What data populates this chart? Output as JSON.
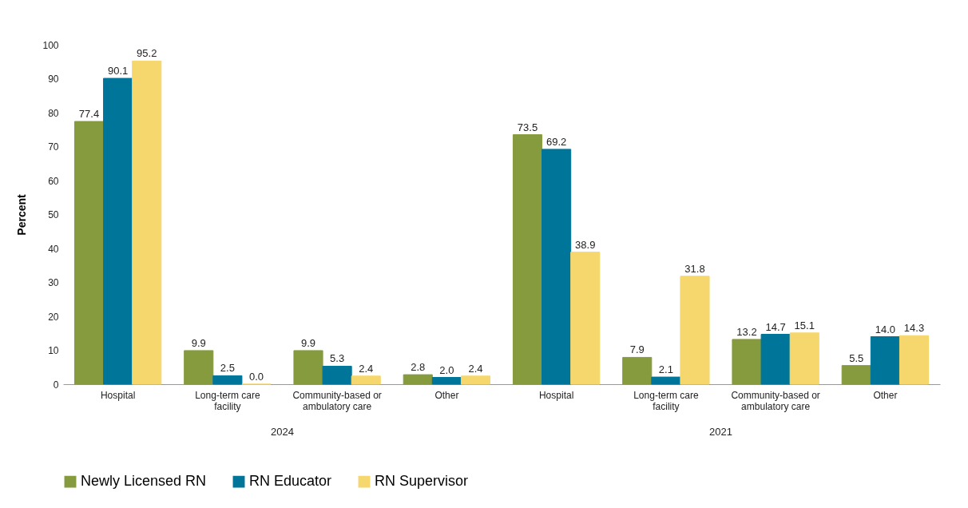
{
  "chart_data": {
    "type": "bar",
    "ylabel": "Percent",
    "categories": [
      "Hospital",
      "Long-term care facility",
      "Community-based or ambulatory care",
      "Other",
      "Hospital",
      "Long-term care facility",
      "Community-based or ambulatory care",
      "Other"
    ],
    "series": [
      {
        "name": "Newly Licensed RN",
        "color": "#869a3e",
        "values": [
          77.4,
          9.9,
          9.9,
          2.8,
          73.5,
          7.9,
          13.2,
          5.5
        ],
        "value_labels": [
          "77.4",
          "9.9",
          "9.9",
          "2.8",
          "73.5",
          "7.9",
          "13.2",
          "5.5"
        ]
      },
      {
        "name": "RN Educator",
        "color": "#00759a",
        "values": [
          90.1,
          2.5,
          5.3,
          2.0,
          69.2,
          2.1,
          14.7,
          14.0
        ],
        "value_labels": [
          "90.1",
          "2.5",
          "5.3",
          "2.0",
          "69.2",
          "2.1",
          "14.7",
          "14.0"
        ]
      },
      {
        "name": "RN Supervisor",
        "color": "#f5d76e",
        "values": [
          95.2,
          0.0,
          2.4,
          2.4,
          38.9,
          31.8,
          15.1,
          14.3
        ],
        "value_labels": [
          "95.2",
          "0.0",
          "2.4",
          "2.4",
          "38.9",
          "31.8",
          "15.1",
          "14.3"
        ]
      }
    ],
    "annotations": [
      "2024",
      "2021"
    ],
    "ylim": [
      0,
      100
    ],
    "yticks": [
      0,
      10,
      20,
      30,
      40,
      50,
      60,
      70,
      80,
      90,
      100
    ],
    "grid": false,
    "legend": "bottom"
  }
}
